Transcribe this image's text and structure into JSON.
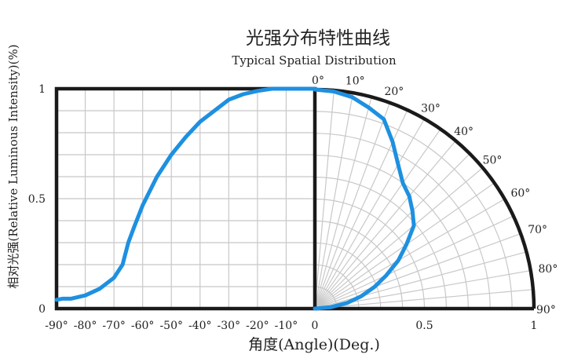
{
  "chart_data": {
    "type": "line",
    "title": "光强分布特性曲线",
    "subtitle": "Typical Spatial Distribution",
    "xlabel": "角度(Angle)(Deg.)",
    "ylabel": "相对光强(Relative Luminous Intensity)(%)",
    "left_panel": {
      "kind": "cartesian",
      "xlim": [
        -90,
        0
      ],
      "ylim": [
        0,
        1
      ],
      "x_ticks": [
        "-90°",
        "-80°",
        "-70°",
        "-60°",
        "-50°",
        "-40°",
        "-30°",
        "-20°",
        "-10°",
        "0"
      ],
      "y_ticks": [
        "0",
        "0.5",
        "1"
      ],
      "grid": true,
      "series": [
        {
          "x": [
            -90,
            -88,
            -85,
            -80,
            -75,
            -70,
            -67,
            -65,
            -63,
            -60,
            -55,
            -50,
            -45,
            -40,
            -35,
            -30,
            -25,
            -20,
            -15,
            -10,
            -5,
            0
          ],
          "y": [
            0.04,
            0.045,
            0.045,
            0.06,
            0.09,
            0.14,
            0.2,
            0.3,
            0.37,
            0.47,
            0.6,
            0.7,
            0.78,
            0.85,
            0.9,
            0.95,
            0.975,
            0.99,
            1.0,
            1.0,
            1.0,
            1.0
          ]
        }
      ]
    },
    "right_panel": {
      "kind": "polar",
      "angle_range": [
        0,
        90
      ],
      "radius_range": [
        0,
        1
      ],
      "angle_labels": [
        "0°",
        "10°",
        "20°",
        "30°",
        "40°",
        "50°",
        "60°",
        "70°",
        "80°",
        "90°"
      ],
      "radius_ticks": [
        "0.5",
        "1"
      ],
      "grid": true,
      "series": [
        {
          "angle": [
            0,
            5,
            10,
            15,
            20,
            25,
            30,
            35,
            40,
            45,
            50,
            55,
            60,
            65,
            70,
            75,
            80,
            85,
            90
          ],
          "r": [
            1.0,
            0.995,
            0.98,
            0.95,
            0.92,
            0.84,
            0.76,
            0.7,
            0.67,
            0.63,
            0.59,
            0.51,
            0.44,
            0.36,
            0.29,
            0.22,
            0.15,
            0.07,
            0.0
          ]
        }
      ]
    },
    "colors": {
      "curve": "#1e90e0",
      "frame": "#1a1a1a",
      "grid": "#c8c8c8"
    }
  }
}
